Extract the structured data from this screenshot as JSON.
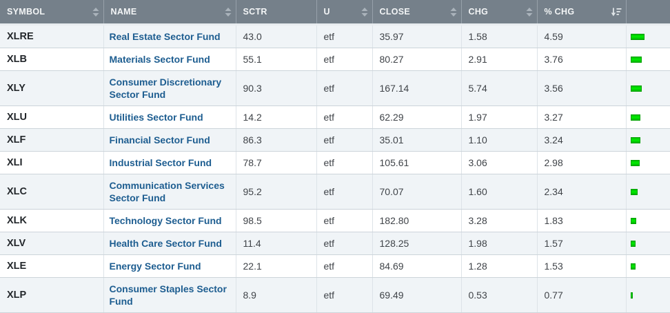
{
  "table": {
    "columns": [
      {
        "key": "symbol",
        "label": "SYMBOL",
        "sort": "toggle"
      },
      {
        "key": "name",
        "label": "NAME",
        "sort": "toggle"
      },
      {
        "key": "sctr",
        "label": "SCTR",
        "sort": "none"
      },
      {
        "key": "u",
        "label": "U",
        "sort": "toggle"
      },
      {
        "key": "close",
        "label": "CLOSE",
        "sort": "toggle"
      },
      {
        "key": "chg",
        "label": "CHG",
        "sort": "toggle"
      },
      {
        "key": "pctchg",
        "label": "% CHG",
        "sort": "desc-active"
      },
      {
        "key": "bar",
        "label": "",
        "sort": "none"
      }
    ],
    "rows": [
      {
        "symbol": "XLRE",
        "name": "Real Estate Sector Fund",
        "sctr": "43.0",
        "u": "etf",
        "close": "35.97",
        "chg": "1.58",
        "pctchg": "4.59"
      },
      {
        "symbol": "XLB",
        "name": "Materials Sector Fund",
        "sctr": "55.1",
        "u": "etf",
        "close": "80.27",
        "chg": "2.91",
        "pctchg": "3.76"
      },
      {
        "symbol": "XLY",
        "name": "Consumer Discretionary Sector Fund",
        "sctr": "90.3",
        "u": "etf",
        "close": "167.14",
        "chg": "5.74",
        "pctchg": "3.56"
      },
      {
        "symbol": "XLU",
        "name": "Utilities Sector Fund",
        "sctr": "14.2",
        "u": "etf",
        "close": "62.29",
        "chg": "1.97",
        "pctchg": "3.27"
      },
      {
        "symbol": "XLF",
        "name": "Financial Sector Fund",
        "sctr": "86.3",
        "u": "etf",
        "close": "35.01",
        "chg": "1.10",
        "pctchg": "3.24"
      },
      {
        "symbol": "XLI",
        "name": "Industrial Sector Fund",
        "sctr": "78.7",
        "u": "etf",
        "close": "105.61",
        "chg": "3.06",
        "pctchg": "2.98"
      },
      {
        "symbol": "XLC",
        "name": "Communication Services Sector Fund",
        "sctr": "95.2",
        "u": "etf",
        "close": "70.07",
        "chg": "1.60",
        "pctchg": "2.34"
      },
      {
        "symbol": "XLK",
        "name": "Technology Sector Fund",
        "sctr": "98.5",
        "u": "etf",
        "close": "182.80",
        "chg": "3.28",
        "pctchg": "1.83"
      },
      {
        "symbol": "XLV",
        "name": "Health Care Sector Fund",
        "sctr": "11.4",
        "u": "etf",
        "close": "128.25",
        "chg": "1.98",
        "pctchg": "1.57"
      },
      {
        "symbol": "XLE",
        "name": "Energy Sector Fund",
        "sctr": "22.1",
        "u": "etf",
        "close": "84.69",
        "chg": "1.28",
        "pctchg": "1.53"
      },
      {
        "symbol": "XLP",
        "name": "Consumer Staples Sector Fund",
        "sctr": "8.9",
        "u": "etf",
        "close": "69.49",
        "chg": "0.53",
        "pctchg": "0.77"
      }
    ]
  },
  "colors": {
    "header_bg": "#75808a",
    "row_alt_bg": "#f0f4f7",
    "bar_green": "#00CC00",
    "name_link_blue": "#1d5d90"
  }
}
